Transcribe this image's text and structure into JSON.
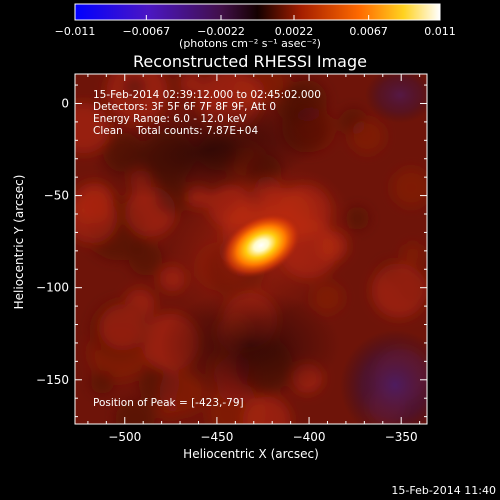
{
  "colorbar": {
    "tick_labels": [
      "−0.011",
      "−0.0067",
      "−0.0022",
      "0.0022",
      "0.0067",
      "0.011"
    ],
    "units": "(photons cm⁻² s⁻¹ asec⁻²)",
    "range": [
      -0.011,
      0.011
    ]
  },
  "plot": {
    "title": "Reconstructed RHESSI Image",
    "info_lines": [
      "15-Feb-2014 02:39:12.000 to 02:45:02.000",
      "Detectors: 3F 5F 6F 7F 8F 9F, Att 0",
      "Energy Range: 6.0 - 12.0 keV",
      "Clean    Total counts: 7.87E+04"
    ],
    "peak_text": "Position of Peak = [-423,-79]"
  },
  "footer": {
    "timestamp": "15-Feb-2014 11:40"
  },
  "chart_data": {
    "type": "heatmap",
    "title": "Reconstructed RHESSI Image",
    "xlabel": "Heliocentric X (arcsec)",
    "ylabel": "Heliocentric Y (arcsec)",
    "xlim": [
      -527,
      -336
    ],
    "ylim": [
      -174,
      16
    ],
    "x_ticks": [
      -500,
      -450,
      -400,
      -350
    ],
    "y_ticks": [
      0,
      -50,
      -100,
      -150
    ],
    "x_tick_labels": [
      "−500",
      "−450",
      "−400",
      "−350"
    ],
    "y_tick_labels": [
      "0",
      "−50",
      "−100",
      "−150"
    ],
    "colormap": "red-temperature (blue-purple-black-red-yellow-white)",
    "value_range": [
      -0.011,
      0.011
    ],
    "peak": {
      "x": -423,
      "y": -79,
      "value": 0.011
    },
    "sources": [
      {
        "x": -426,
        "y": -77,
        "sigma_major": 9,
        "sigma_minor": 6,
        "angle_deg": 28,
        "amplitude": 0.0115
      }
    ],
    "background_level": 0.0032,
    "negative_region": {
      "x": -352,
      "y": -150,
      "value": -0.0035
    }
  }
}
